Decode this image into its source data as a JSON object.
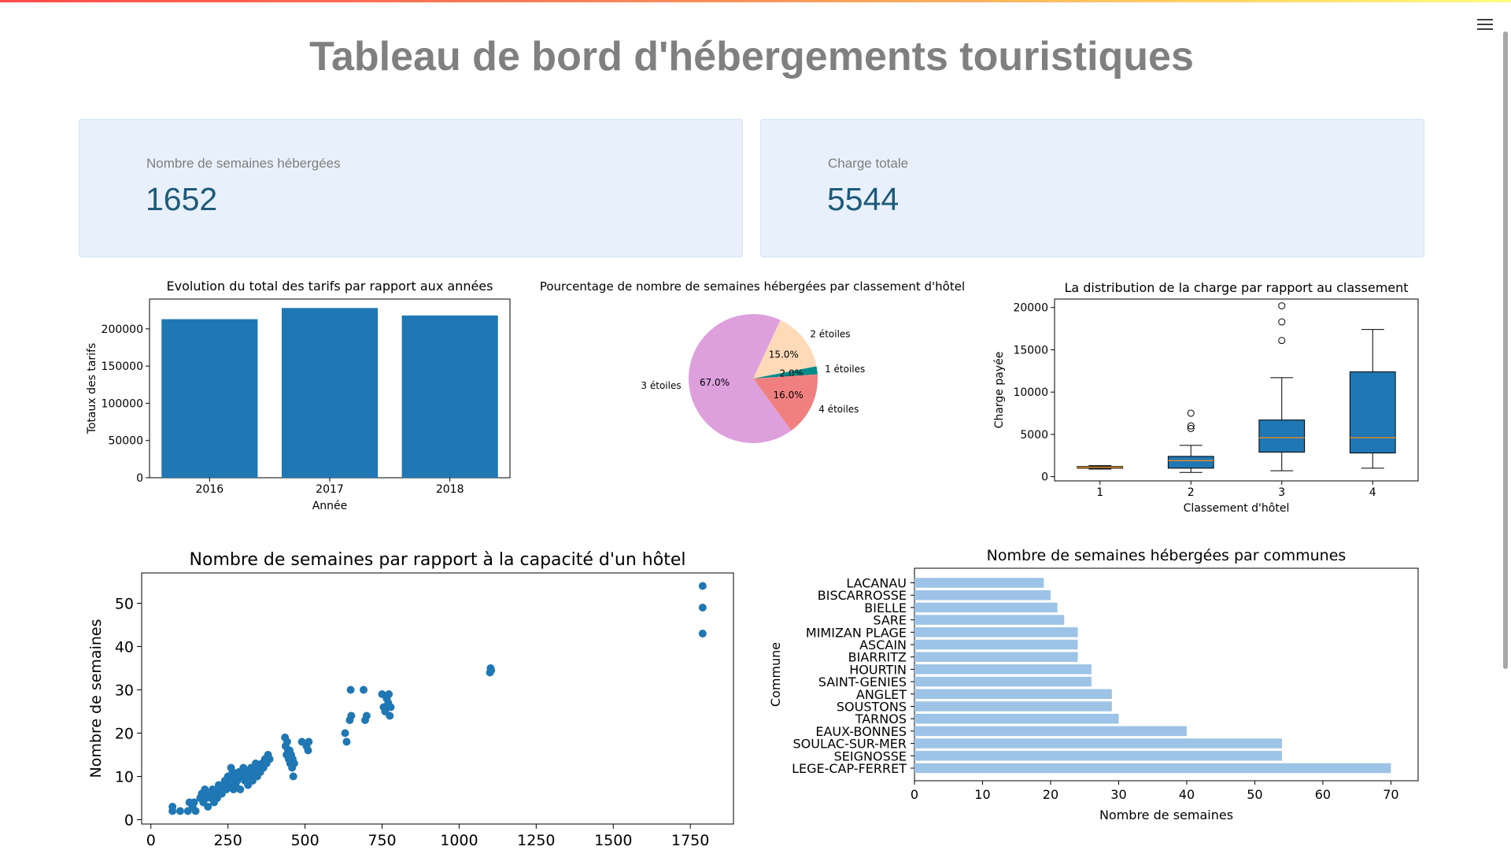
{
  "page": {
    "title": "Tableau de bord d'hébergements touristiques"
  },
  "metrics": [
    {
      "label": "Nombre de semaines hébergées",
      "value": "1652"
    },
    {
      "label": "Charge totale",
      "value": "5544"
    }
  ],
  "icons": {
    "menu": "hamburger-menu-icon"
  },
  "colors": {
    "bar": "#1f77b4",
    "hbar": "#9dc3e6",
    "metric_bg": "#e8f1fb",
    "metric_value": "#1e5a7a"
  },
  "chart_data": [
    {
      "type": "bar",
      "title": "Evolution du total des tarifs par rapport aux années",
      "xlabel": "Année",
      "ylabel": "Totaux des tarifs",
      "categories": [
        "2016",
        "2017",
        "2018"
      ],
      "values": [
        213000,
        228000,
        218000
      ],
      "ylim": [
        0,
        240000
      ],
      "yticks": [
        0,
        50000,
        100000,
        150000,
        200000
      ]
    },
    {
      "type": "pie",
      "title": "Pourcentage de nombre de semaines hébergées par classement d'hôtel",
      "slices": [
        {
          "label": "2 étoiles",
          "value": 15.0,
          "pct": "15.0%",
          "color": "#ffdab9"
        },
        {
          "label": "1 étoiles",
          "value": 2.0,
          "pct": "2.0%",
          "color": "#008b8b"
        },
        {
          "label": "4 étoiles",
          "value": 16.0,
          "pct": "16.0%",
          "color": "#f08080"
        },
        {
          "label": "3 étoiles",
          "value": 67.0,
          "pct": "67.0%",
          "color": "#dda0dd"
        }
      ]
    },
    {
      "type": "box",
      "title": "La distribution de la charge par rapport au classement",
      "xlabel": "Classement d'hôtel",
      "ylabel": "Charge payée",
      "categories": [
        "1",
        "2",
        "3",
        "4"
      ],
      "ylim": [
        -500,
        21000
      ],
      "yticks": [
        0,
        5000,
        10000,
        15000,
        20000
      ],
      "boxes": [
        {
          "whislo": 900,
          "q1": 1000,
          "med": 1100,
          "q3": 1200,
          "whishi": 1300,
          "fliers": []
        },
        {
          "whislo": 500,
          "q1": 1000,
          "med": 1900,
          "q3": 2400,
          "whishi": 3700,
          "fliers": [
            5700,
            6000,
            7500
          ]
        },
        {
          "whislo": 700,
          "q1": 2900,
          "med": 4600,
          "q3": 6700,
          "whishi": 11700,
          "fliers": [
            16100,
            18300,
            20200
          ]
        },
        {
          "whislo": 1000,
          "q1": 2800,
          "med": 4600,
          "q3": 12400,
          "whishi": 17400,
          "fliers": []
        }
      ]
    },
    {
      "type": "scatter",
      "title": "Nombre de semaines par rapport à la capacité d'un hôtel",
      "ylabel": "Nombre de semaines",
      "xlim": [
        -30,
        1890
      ],
      "ylim": [
        -1,
        57
      ],
      "xticks": [
        0,
        250,
        500,
        750,
        1000,
        1250,
        1500,
        1750
      ],
      "yticks": [
        0,
        10,
        20,
        30,
        40,
        50
      ],
      "points": [
        [
          70,
          2
        ],
        [
          70,
          3
        ],
        [
          95,
          2
        ],
        [
          120,
          2
        ],
        [
          125,
          4
        ],
        [
          135,
          3
        ],
        [
          140,
          4
        ],
        [
          145,
          2
        ],
        [
          160,
          5
        ],
        [
          165,
          6
        ],
        [
          170,
          4
        ],
        [
          175,
          7
        ],
        [
          180,
          5
        ],
        [
          185,
          3
        ],
        [
          190,
          6
        ],
        [
          195,
          5
        ],
        [
          200,
          7
        ],
        [
          205,
          4
        ],
        [
          210,
          6
        ],
        [
          215,
          5
        ],
        [
          220,
          8
        ],
        [
          225,
          7
        ],
        [
          230,
          6
        ],
        [
          235,
          8
        ],
        [
          240,
          9
        ],
        [
          245,
          7
        ],
        [
          250,
          10
        ],
        [
          255,
          8
        ],
        [
          260,
          12
        ],
        [
          262,
          9
        ],
        [
          265,
          11
        ],
        [
          268,
          7
        ],
        [
          270,
          10
        ],
        [
          275,
          8
        ],
        [
          280,
          9
        ],
        [
          285,
          11
        ],
        [
          290,
          7
        ],
        [
          295,
          10
        ],
        [
          300,
          12
        ],
        [
          305,
          9
        ],
        [
          310,
          11
        ],
        [
          315,
          8
        ],
        [
          320,
          10
        ],
        [
          325,
          12
        ],
        [
          330,
          9
        ],
        [
          335,
          11
        ],
        [
          340,
          13
        ],
        [
          345,
          10
        ],
        [
          350,
          12
        ],
        [
          355,
          11
        ],
        [
          360,
          13
        ],
        [
          365,
          12
        ],
        [
          370,
          14
        ],
        [
          375,
          13
        ],
        [
          380,
          15
        ],
        [
          385,
          14
        ],
        [
          435,
          19
        ],
        [
          437,
          17
        ],
        [
          440,
          15
        ],
        [
          442,
          18
        ],
        [
          445,
          16
        ],
        [
          447,
          14
        ],
        [
          450,
          16
        ],
        [
          452,
          13
        ],
        [
          455,
          15
        ],
        [
          458,
          12
        ],
        [
          460,
          14
        ],
        [
          462,
          10
        ],
        [
          465,
          13
        ],
        [
          490,
          18
        ],
        [
          505,
          17
        ],
        [
          510,
          16
        ],
        [
          512,
          18
        ],
        [
          630,
          20
        ],
        [
          635,
          18
        ],
        [
          645,
          23
        ],
        [
          648,
          30
        ],
        [
          650,
          24
        ],
        [
          690,
          30
        ],
        [
          695,
          23
        ],
        [
          700,
          24
        ],
        [
          750,
          29
        ],
        [
          755,
          26
        ],
        [
          760,
          25
        ],
        [
          765,
          28
        ],
        [
          770,
          27
        ],
        [
          772,
          29
        ],
        [
          775,
          24
        ],
        [
          778,
          26
        ],
        [
          1100,
          34
        ],
        [
          1102,
          35
        ],
        [
          1104,
          34.5
        ],
        [
          1790,
          43
        ],
        [
          1790,
          49
        ],
        [
          1790,
          54
        ]
      ]
    },
    {
      "type": "bar",
      "orientation": "horizontal",
      "title": "Nombre de semaines hébergées par communes",
      "xlabel": "Nombre de semaines",
      "ylabel": "Commune",
      "categories": [
        "LEGE-CAP-FERRET",
        "SEIGNOSSE",
        "SOULAC-SUR-MER",
        "EAUX-BONNES",
        "TARNOS",
        "SOUSTONS",
        "ANGLET",
        "SAINT-GENIES",
        "HOURTIN",
        "BIARRITZ",
        "ASCAIN",
        "MIMIZAN PLAGE",
        "SARE",
        "BIELLE",
        "BISCARROSSE",
        "LACANAU"
      ],
      "values": [
        70,
        54,
        54,
        40,
        30,
        29,
        29,
        26,
        26,
        24,
        24,
        24,
        22,
        21,
        20,
        19
      ],
      "xlim": [
        0,
        74
      ],
      "xticks": [
        0,
        10,
        20,
        30,
        40,
        50,
        60,
        70
      ]
    }
  ]
}
